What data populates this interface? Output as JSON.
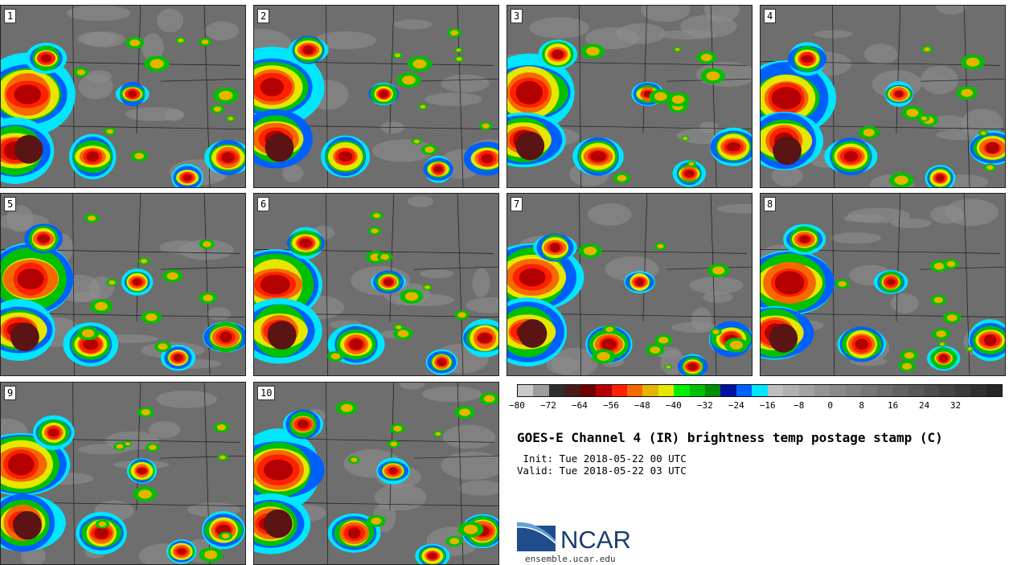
{
  "panels": [
    {
      "label": "1"
    },
    {
      "label": "2"
    },
    {
      "label": "3"
    },
    {
      "label": "4"
    },
    {
      "label": "5"
    },
    {
      "label": "6"
    },
    {
      "label": "7"
    },
    {
      "label": "8"
    },
    {
      "label": "9"
    },
    {
      "label": "10"
    }
  ],
  "colorbar": {
    "colors": [
      "#c8c8c8",
      "#9c9c9c",
      "#2e2e2e",
      "#4a1a1a",
      "#6e0000",
      "#b40000",
      "#ff2000",
      "#f56a00",
      "#e6b400",
      "#e6e600",
      "#00f000",
      "#00c000",
      "#008c00",
      "#0014a0",
      "#0060ff",
      "#00e6ff",
      "#bebebe",
      "#b0b0b0",
      "#a2a2a2",
      "#949494",
      "#8a8a8a",
      "#808080",
      "#767676",
      "#6c6c6c",
      "#626262",
      "#585858",
      "#4e4e4e",
      "#444444",
      "#3a3a3a",
      "#303030",
      "#262626"
    ],
    "tick_labels": [
      "−80",
      "−72",
      "−64",
      "−56",
      "−48",
      "−40",
      "−32",
      "−24",
      "−16",
      "−8",
      "0",
      "8",
      "16",
      "24",
      "32"
    ]
  },
  "title": "GOES-E Channel 4 (IR) brightness temp postage stamp (C)",
  "init_text": " Init: Tue 2018-05-22 00 UTC",
  "valid_text": "Valid: Tue 2018-05-22 03 UTC",
  "logo_text": "NCAR",
  "site_text": "ensemble.ucar.edu"
}
